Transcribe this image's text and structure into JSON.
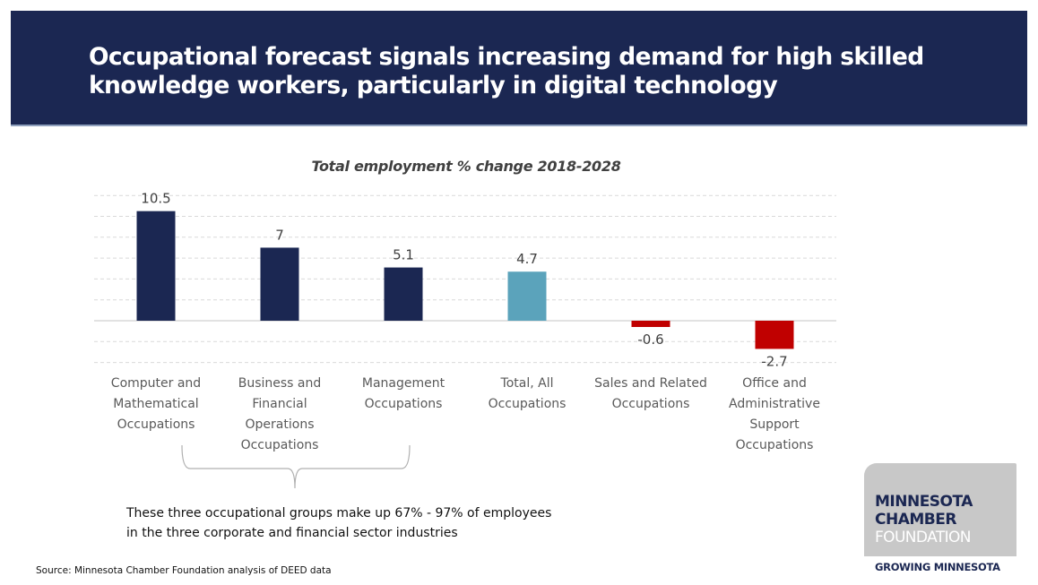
{
  "header": {
    "title": "Occupational forecast signals increasing demand for high skilled knowledge workers, particularly in digital technology"
  },
  "colors": {
    "banner": "#1b2752",
    "bar_primary": "#1b2752",
    "bar_total": "#5ba3bb",
    "bar_negative": "#c00000"
  },
  "chart_data": {
    "type": "bar",
    "title": "Total employment % change 2018-2028",
    "xlabel": "",
    "ylabel": "",
    "ylim": [
      -4,
      12
    ],
    "grid": true,
    "gridline_step": 2,
    "categories": [
      "Computer and Mathematical Occupations",
      "Business and Financial Operations Occupations",
      "Management Occupations",
      "Total, All Occupations",
      "Sales and Related Occupations",
      "Office and Administrative Support Occupations"
    ],
    "category_lines": [
      [
        "Computer and",
        "Mathematical",
        "Occupations"
      ],
      [
        "Business and",
        "Financial",
        "Operations",
        "Occupations"
      ],
      [
        "Management",
        "Occupations"
      ],
      [
        "Total, All",
        "Occupations"
      ],
      [
        "Sales and Related",
        "Occupations"
      ],
      [
        "Office and",
        "Administrative",
        "Support",
        "Occupations"
      ]
    ],
    "values": [
      10.5,
      7,
      5.1,
      4.7,
      -0.6,
      -2.7
    ],
    "data_labels": [
      "10.5",
      "7",
      "5.1",
      "4.7",
      "-0.6",
      "-2.7"
    ],
    "bar_colors": [
      "#1b2752",
      "#1b2752",
      "#1b2752",
      "#5ba3bb",
      "#c00000",
      "#c00000"
    ]
  },
  "annotation": {
    "text_line1": "These three occupational groups make up 67% - 97% of employees",
    "text_line2": "in the three corporate and financial sector industries"
  },
  "source": "Source: Minnesota Chamber Foundation analysis of DEED data",
  "logo": {
    "line1": "MINNESOTA",
    "line2": "CHAMBER",
    "line3": "FOUNDATION",
    "tagline": "GROWING MINNESOTA"
  }
}
